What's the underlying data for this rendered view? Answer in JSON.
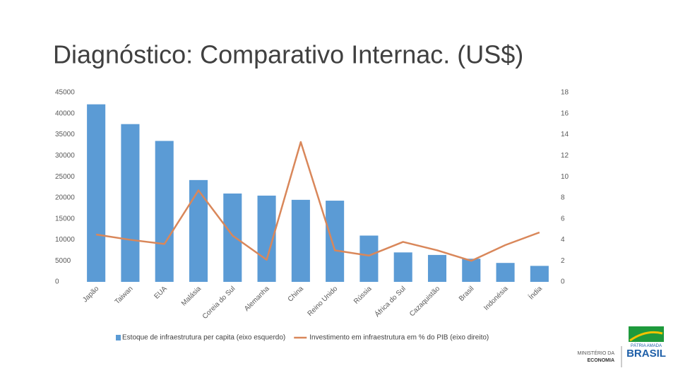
{
  "chart_data": {
    "type": "bar-line",
    "title": "Diagnóstico: Comparativo Internac. (US$)",
    "categories": [
      "Japão",
      "Taiwan",
      "EUA",
      "Malásia",
      "Coreia do Sul",
      "Alemanha",
      "China",
      "Reino Unido",
      "Rússia",
      "África do Sul",
      "Cazaquistão",
      "Brasil",
      "Indonésia",
      "Índia"
    ],
    "series": [
      {
        "name": "Estoque de infraestrutura per capita (eixo esquerdo)",
        "type": "bar",
        "color": "#5b9bd5",
        "axis": "y",
        "values": [
          42200,
          37500,
          33500,
          24200,
          21000,
          20500,
          19500,
          19300,
          11000,
          7000,
          6400,
          5500,
          4500,
          3800
        ]
      },
      {
        "name": "Investimento em infraestrutura em % do PIB (eixo direito)",
        "type": "line",
        "color": "#d9875a",
        "axis": "y2",
        "values": [
          4.5,
          4.0,
          3.6,
          8.7,
          4.4,
          2.1,
          13.3,
          3.0,
          2.5,
          3.8,
          3.0,
          2.0,
          3.5,
          4.7
        ]
      }
    ],
    "ylim": [
      0,
      45000
    ],
    "yticks": [
      0,
      5000,
      10000,
      15000,
      20000,
      25000,
      30000,
      35000,
      40000,
      45000
    ],
    "y2lim": [
      0,
      18
    ],
    "y2ticks": [
      0,
      2,
      4,
      6,
      8,
      10,
      12,
      14,
      16,
      18
    ],
    "grid": false,
    "legend": "bottom"
  },
  "logo": {
    "ministry_line1": "MINISTÉRIO DA",
    "ministry_line2": "ECONOMIA",
    "brand_line1": "PÁTRIA AMADA",
    "brand_line2": "BRASIL"
  }
}
